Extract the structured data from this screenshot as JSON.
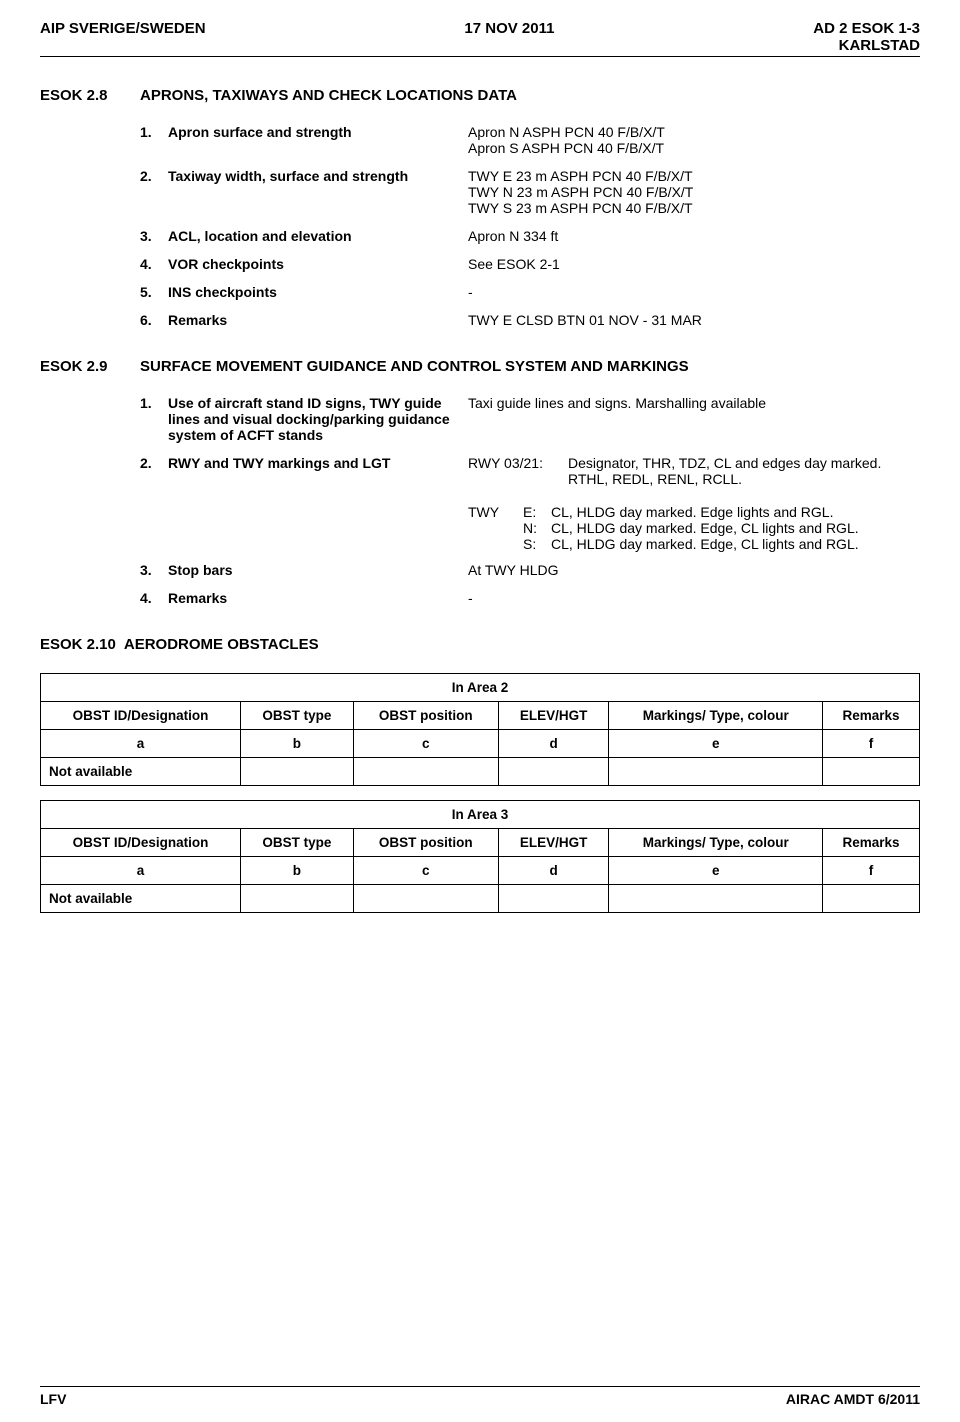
{
  "header": {
    "left": "AIP SVERIGE/SWEDEN",
    "center": "17 NOV 2011",
    "right_line1": "AD 2 ESOK 1-3",
    "right_line2": "KARLSTAD"
  },
  "section28": {
    "code": "ESOK 2.8",
    "title": "APRONS, TAXIWAYS AND CHECK LOCATIONS DATA",
    "items": [
      {
        "num": "1.",
        "label": "Apron surface and strength",
        "lines": [
          "Apron N ASPH PCN 40 F/B/X/T",
          "Apron S ASPH PCN 40 F/B/X/T"
        ]
      },
      {
        "num": "2.",
        "label": "Taxiway width, surface and strength",
        "lines": [
          "TWY E 23 m ASPH PCN 40 F/B/X/T",
          "TWY N 23 m ASPH PCN 40 F/B/X/T",
          "TWY S 23 m ASPH PCN 40 F/B/X/T"
        ]
      },
      {
        "num": "3.",
        "label": "ACL, location and elevation",
        "lines": [
          "Apron N 334 ft"
        ]
      },
      {
        "num": "4.",
        "label": "VOR checkpoints",
        "lines": [
          "See ESOK 2-1"
        ]
      },
      {
        "num": "5.",
        "label": "INS checkpoints",
        "lines": [
          "-"
        ]
      },
      {
        "num": "6.",
        "label": "Remarks",
        "lines": [
          "TWY E  CLSD BTN 01 NOV - 31 MAR"
        ]
      }
    ]
  },
  "section29": {
    "code": "ESOK 2.9",
    "title": "SURFACE MOVEMENT GUIDANCE AND CONTROL SYSTEM AND MARKINGS",
    "items": {
      "i1": {
        "num": "1.",
        "label": "Use of aircraft stand ID signs, TWY guide lines and visual docking/parking guidance system of ACFT stands",
        "value": "Taxi guide lines and signs. Marshalling available"
      },
      "i2": {
        "num": "2.",
        "label": "RWY and TWY markings and LGT",
        "rwy_key": "RWY  03/21:",
        "rwy_desc1": "Designator, THR, TDZ, CL and edges day marked.",
        "rwy_desc2": "RTHL, REDL, RENL, RCLL.",
        "twy": [
          {
            "key": "TWY",
            "sub": "E:",
            "desc": "CL, HLDG day marked. Edge lights and RGL."
          },
          {
            "key": "",
            "sub": "N:",
            "desc": "CL, HLDG day marked. Edge, CL lights and RGL."
          },
          {
            "key": "",
            "sub": "S:",
            "desc": "CL, HLDG day marked. Edge, CL lights and RGL."
          }
        ]
      },
      "i3": {
        "num": "3.",
        "label": "Stop bars",
        "value": "At TWY HLDG"
      },
      "i4": {
        "num": "4.",
        "label": "Remarks",
        "value": "-"
      }
    }
  },
  "section210": {
    "code": "ESOK 2.10",
    "title": "AERODROME OBSTACLES",
    "area2": {
      "title": "In Area 2",
      "headers": [
        "OBST ID/Designation",
        "OBST type",
        "OBST position",
        "ELEV/HGT",
        "Markings/ Type, colour",
        "Remarks"
      ],
      "letters": [
        "a",
        "b",
        "c",
        "d",
        "e",
        "f"
      ],
      "na": "Not available"
    },
    "area3": {
      "title": "In Area 3",
      "headers": [
        "OBST ID/Designation",
        "OBST type",
        "OBST position",
        "ELEV/HGT",
        "Markings/ Type, colour",
        "Remarks"
      ],
      "letters": [
        "a",
        "b",
        "c",
        "d",
        "e",
        "f"
      ],
      "na": "Not available"
    }
  },
  "footer": {
    "left": "LFV",
    "right": "AIRAC AMDT 6/2011"
  }
}
